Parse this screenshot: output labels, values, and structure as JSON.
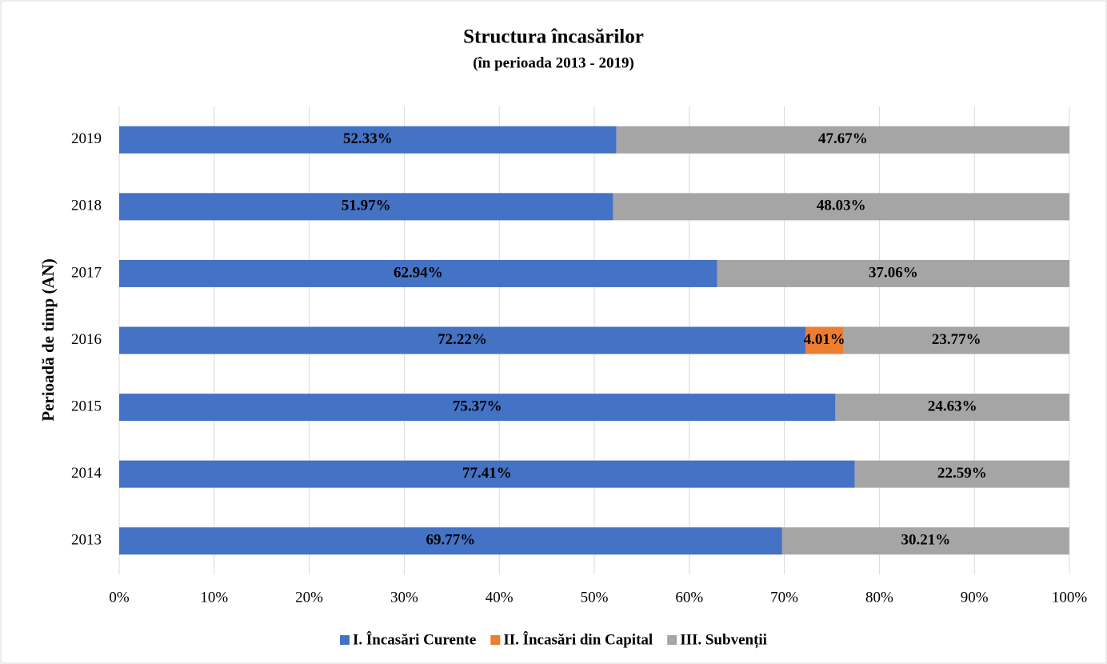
{
  "chart_data": {
    "type": "stacked-barh",
    "title": "Structura încasărilor",
    "subtitle": "(în perioada 2013 - 2019)",
    "y_label": "Perioadă de timp (AN)",
    "categories": [
      "2013",
      "2014",
      "2015",
      "2016",
      "2017",
      "2018",
      "2019"
    ],
    "series": [
      {
        "name": "I. Încasări Curente",
        "color": "#4472c4",
        "values": [
          69.77,
          77.41,
          75.37,
          72.22,
          62.94,
          51.97,
          52.33
        ],
        "value_labels": [
          "69.77%",
          "77.41%",
          "75.37%",
          "72.22%",
          "62.94%",
          "51.97%",
          "52.33%"
        ]
      },
      {
        "name": "II. Încasări din Capital",
        "color": "#ed7d31",
        "values": [
          null,
          null,
          null,
          4.01,
          null,
          null,
          null
        ],
        "value_labels": [
          null,
          null,
          null,
          "4.01%",
          null,
          null,
          null
        ]
      },
      {
        "name": "III. Subvenții",
        "color": "#a5a5a5",
        "values": [
          30.21,
          22.59,
          24.63,
          23.77,
          37.06,
          48.03,
          47.67
        ],
        "value_labels": [
          "30.21%",
          "22.59%",
          "24.63%",
          "23.77%",
          "37.06%",
          "48.03%",
          "47.67%"
        ]
      }
    ],
    "xlim": [
      0,
      100
    ],
    "xticks": [
      {
        "value": 0,
        "label": "0%"
      },
      {
        "value": 10,
        "label": "10%"
      },
      {
        "value": 20,
        "label": "20%"
      },
      {
        "value": 30,
        "label": "30%"
      },
      {
        "value": 40,
        "label": "40%"
      },
      {
        "value": 50,
        "label": "50%"
      },
      {
        "value": 60,
        "label": "60%"
      },
      {
        "value": 70,
        "label": "70%"
      },
      {
        "value": 80,
        "label": "80%"
      },
      {
        "value": 90,
        "label": "90%"
      },
      {
        "value": 100,
        "label": "100%"
      }
    ],
    "grid": true,
    "legend": "bottom"
  }
}
